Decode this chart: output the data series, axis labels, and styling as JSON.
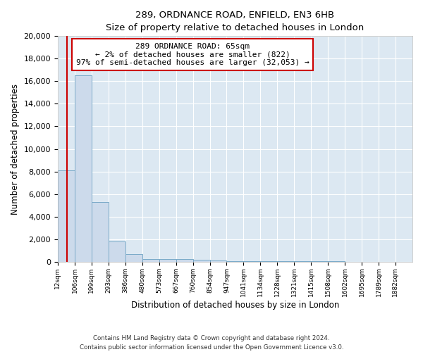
{
  "title": "289, ORDNANCE ROAD, ENFIELD, EN3 6HB",
  "subtitle": "Size of property relative to detached houses in London",
  "xlabel": "Distribution of detached houses by size in London",
  "ylabel": "Number of detached properties",
  "bin_labels": [
    "12sqm",
    "106sqm",
    "199sqm",
    "293sqm",
    "386sqm",
    "480sqm",
    "573sqm",
    "667sqm",
    "760sqm",
    "854sqm",
    "947sqm",
    "1041sqm",
    "1134sqm",
    "1228sqm",
    "1321sqm",
    "1415sqm",
    "1508sqm",
    "1602sqm",
    "1695sqm",
    "1789sqm",
    "1882sqm"
  ],
  "bin_edges": [
    12,
    106,
    199,
    293,
    386,
    480,
    573,
    667,
    760,
    854,
    947,
    1041,
    1134,
    1228,
    1321,
    1415,
    1508,
    1602,
    1695,
    1789,
    1882
  ],
  "bar_heights": [
    8100,
    16500,
    5300,
    1800,
    650,
    250,
    200,
    200,
    150,
    80,
    60,
    50,
    40,
    30,
    20,
    20,
    15,
    10,
    8,
    5,
    2
  ],
  "bar_color": "#ccdaeb",
  "bar_edgecolor": "#7aaac8",
  "property_line_x": 65,
  "property_line_color": "#cc0000",
  "annotation_line1": "289 ORDNANCE ROAD: 65sqm",
  "annotation_line2": "← 2% of detached houses are smaller (822)",
  "annotation_line3": "97% of semi-detached houses are larger (32,053) →",
  "annotation_box_facecolor": "#ffffff",
  "annotation_edge_color": "#cc0000",
  "ylim_max": 20000,
  "yticks": [
    0,
    2000,
    4000,
    6000,
    8000,
    10000,
    12000,
    14000,
    16000,
    18000,
    20000
  ],
  "background_color": "#dce8f2",
  "grid_color": "#ffffff",
  "footer_line1": "Contains HM Land Registry data © Crown copyright and database right 2024.",
  "footer_line2": "Contains public sector information licensed under the Open Government Licence v3.0."
}
